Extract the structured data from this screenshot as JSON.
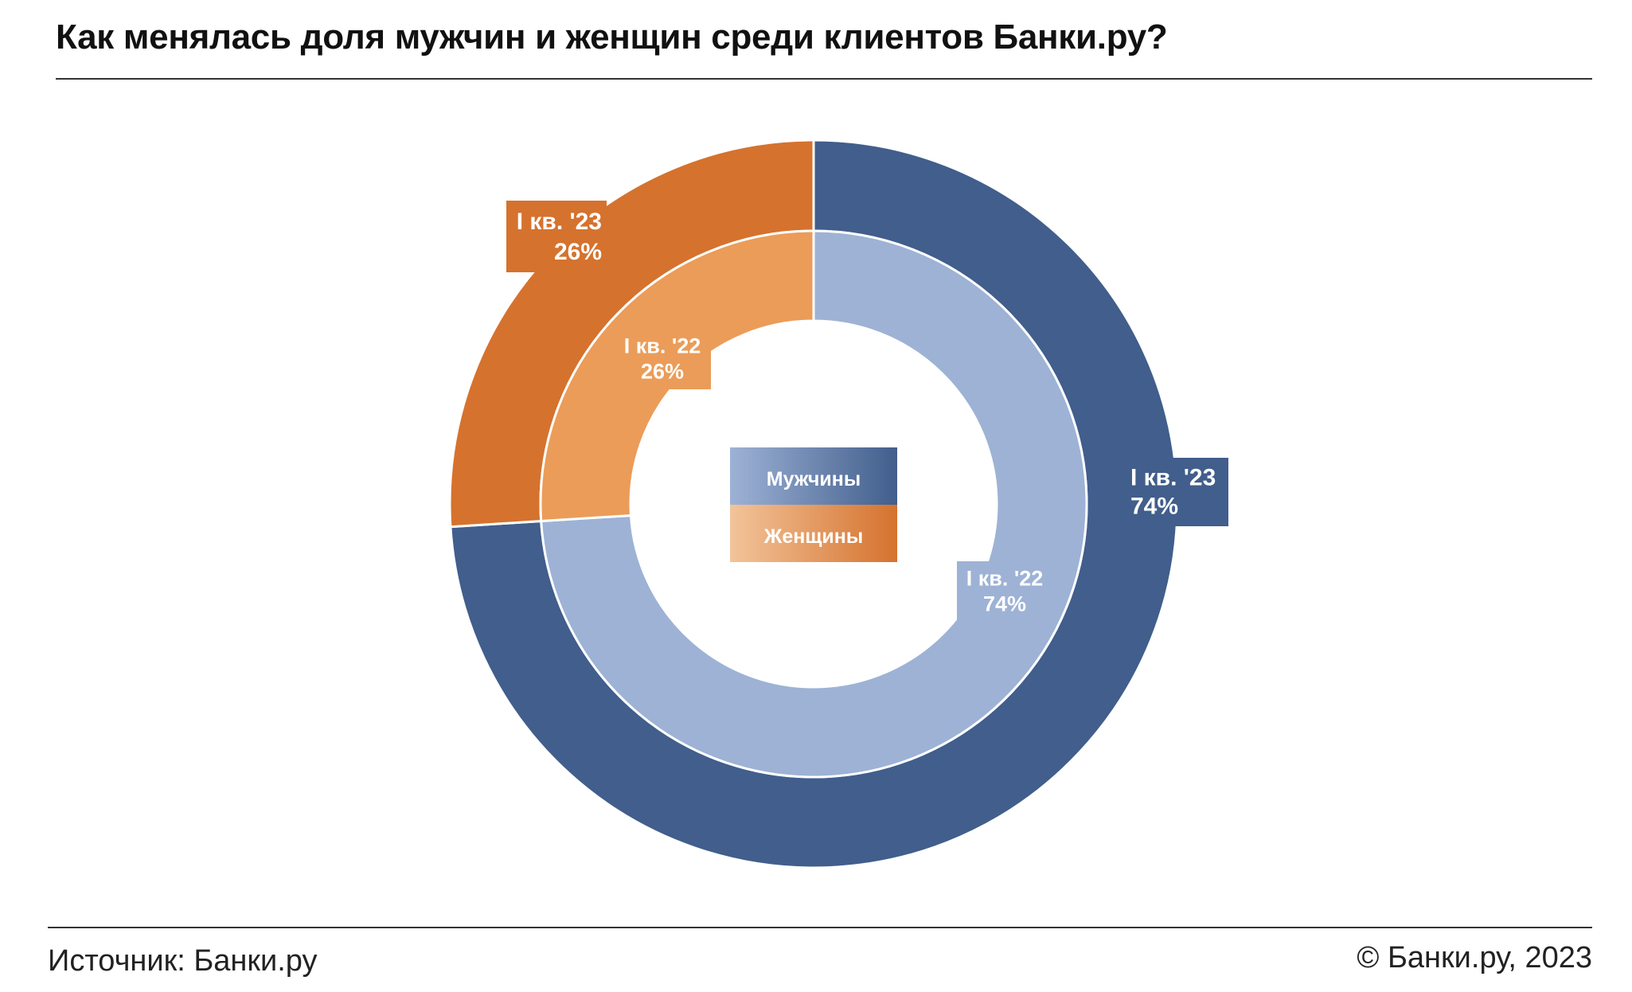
{
  "title": "Как менялась доля мужчин и женщин среди клиентов Банки.ру?",
  "footer": {
    "source": "Источник: Банки.ру",
    "copyright": "© Банки.ру, 2023"
  },
  "colors": {
    "men_outer": "#415E8C",
    "men_inner": "#9DB2D5",
    "women_outer": "#D5722E",
    "women_inner": "#EB9C58"
  },
  "chart_data": {
    "type": "pie",
    "variant": "nested-donut",
    "title": "Как менялась доля мужчин и женщин среди клиентов Банки.ру?",
    "categories": [
      "Мужчины",
      "Женщины"
    ],
    "series": [
      {
        "name": "I кв. '23",
        "ring": "outer",
        "values": [
          74,
          26
        ]
      },
      {
        "name": "I кв. '22",
        "ring": "inner",
        "values": [
          74,
          26
        ]
      }
    ],
    "data_labels": {
      "outer_men": [
        "I кв. '23",
        "74%"
      ],
      "outer_women": [
        "I кв. '23",
        "26%"
      ],
      "inner_men": [
        "I кв. '22",
        "74%"
      ],
      "inner_women": [
        "I кв. '22",
        "26%"
      ]
    },
    "legend": {
      "position": "center",
      "items": [
        "Мужчины",
        "Женщины"
      ]
    }
  }
}
